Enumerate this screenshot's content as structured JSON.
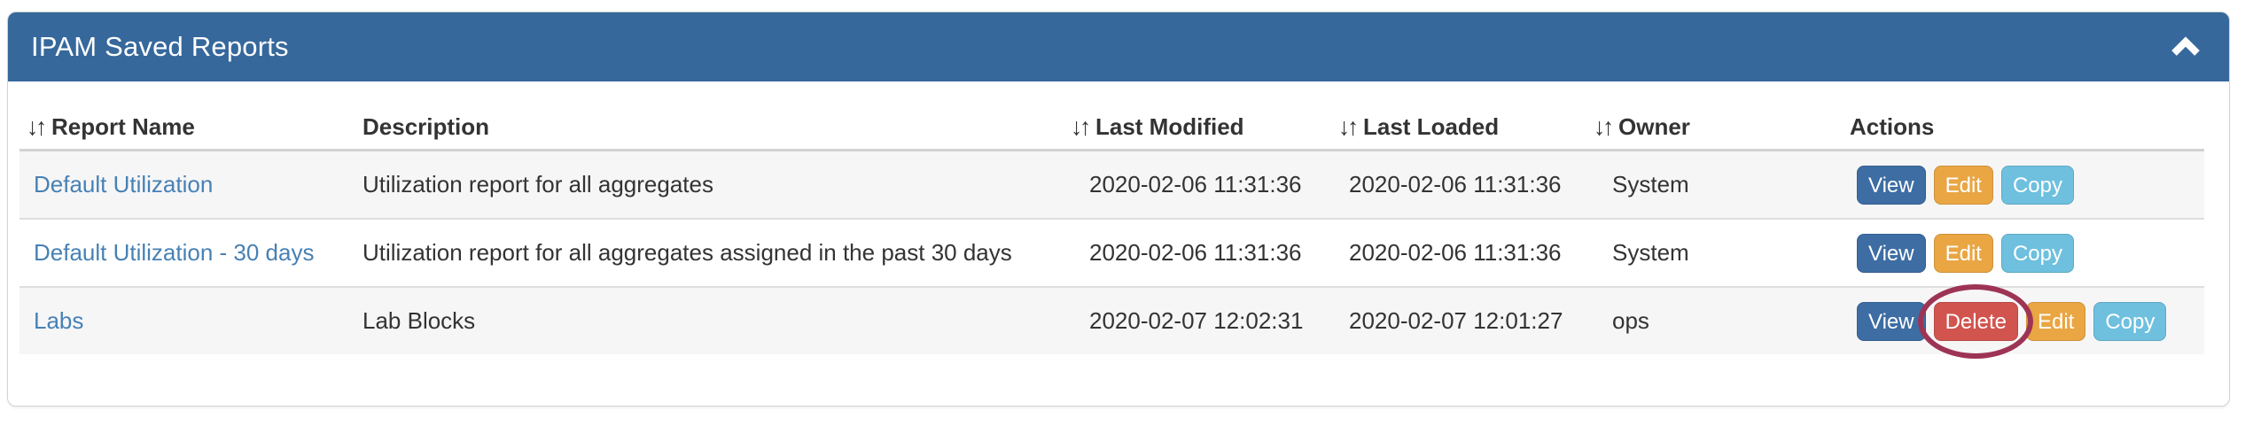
{
  "panel": {
    "title": "IPAM Saved Reports",
    "collapse_icon": "chevron-up"
  },
  "colors": {
    "header_bg": "#36689c",
    "link": "#4781b4",
    "btn_view": "#3d6da3",
    "btn_edit": "#e9a643",
    "btn_copy": "#6ec0de",
    "btn_delete": "#d2544e",
    "annotation_circle": "#9e3455"
  },
  "table": {
    "sort_icon": "↓↑",
    "columns": [
      {
        "id": "report_name",
        "label": "Report Name",
        "sortable": true
      },
      {
        "id": "description",
        "label": "Description",
        "sortable": false
      },
      {
        "id": "last_modified",
        "label": "Last Modified",
        "sortable": true
      },
      {
        "id": "last_loaded",
        "label": "Last Loaded",
        "sortable": true
      },
      {
        "id": "owner",
        "label": "Owner",
        "sortable": true
      },
      {
        "id": "actions",
        "label": "Actions",
        "sortable": false
      }
    ],
    "rows": [
      {
        "report_name": "Default Utilization",
        "description": "Utilization report for all aggregates",
        "last_modified": "2020-02-06 11:31:36",
        "last_loaded": "2020-02-06 11:31:36",
        "owner": "System",
        "actions": [
          "View",
          "Edit",
          "Copy"
        ],
        "annotated_action": null
      },
      {
        "report_name": "Default Utilization - 30 days",
        "description": "Utilization report for all aggregates assigned in the past 30 days",
        "last_modified": "2020-02-06 11:31:36",
        "last_loaded": "2020-02-06 11:31:36",
        "owner": "System",
        "actions": [
          "View",
          "Edit",
          "Copy"
        ],
        "annotated_action": null
      },
      {
        "report_name": "Labs",
        "description": "Lab Blocks",
        "last_modified": "2020-02-07 12:02:31",
        "last_loaded": "2020-02-07 12:01:27",
        "owner": "ops",
        "actions": [
          "View",
          "Delete",
          "Edit",
          "Copy"
        ],
        "annotated_action": "Delete"
      }
    ]
  }
}
